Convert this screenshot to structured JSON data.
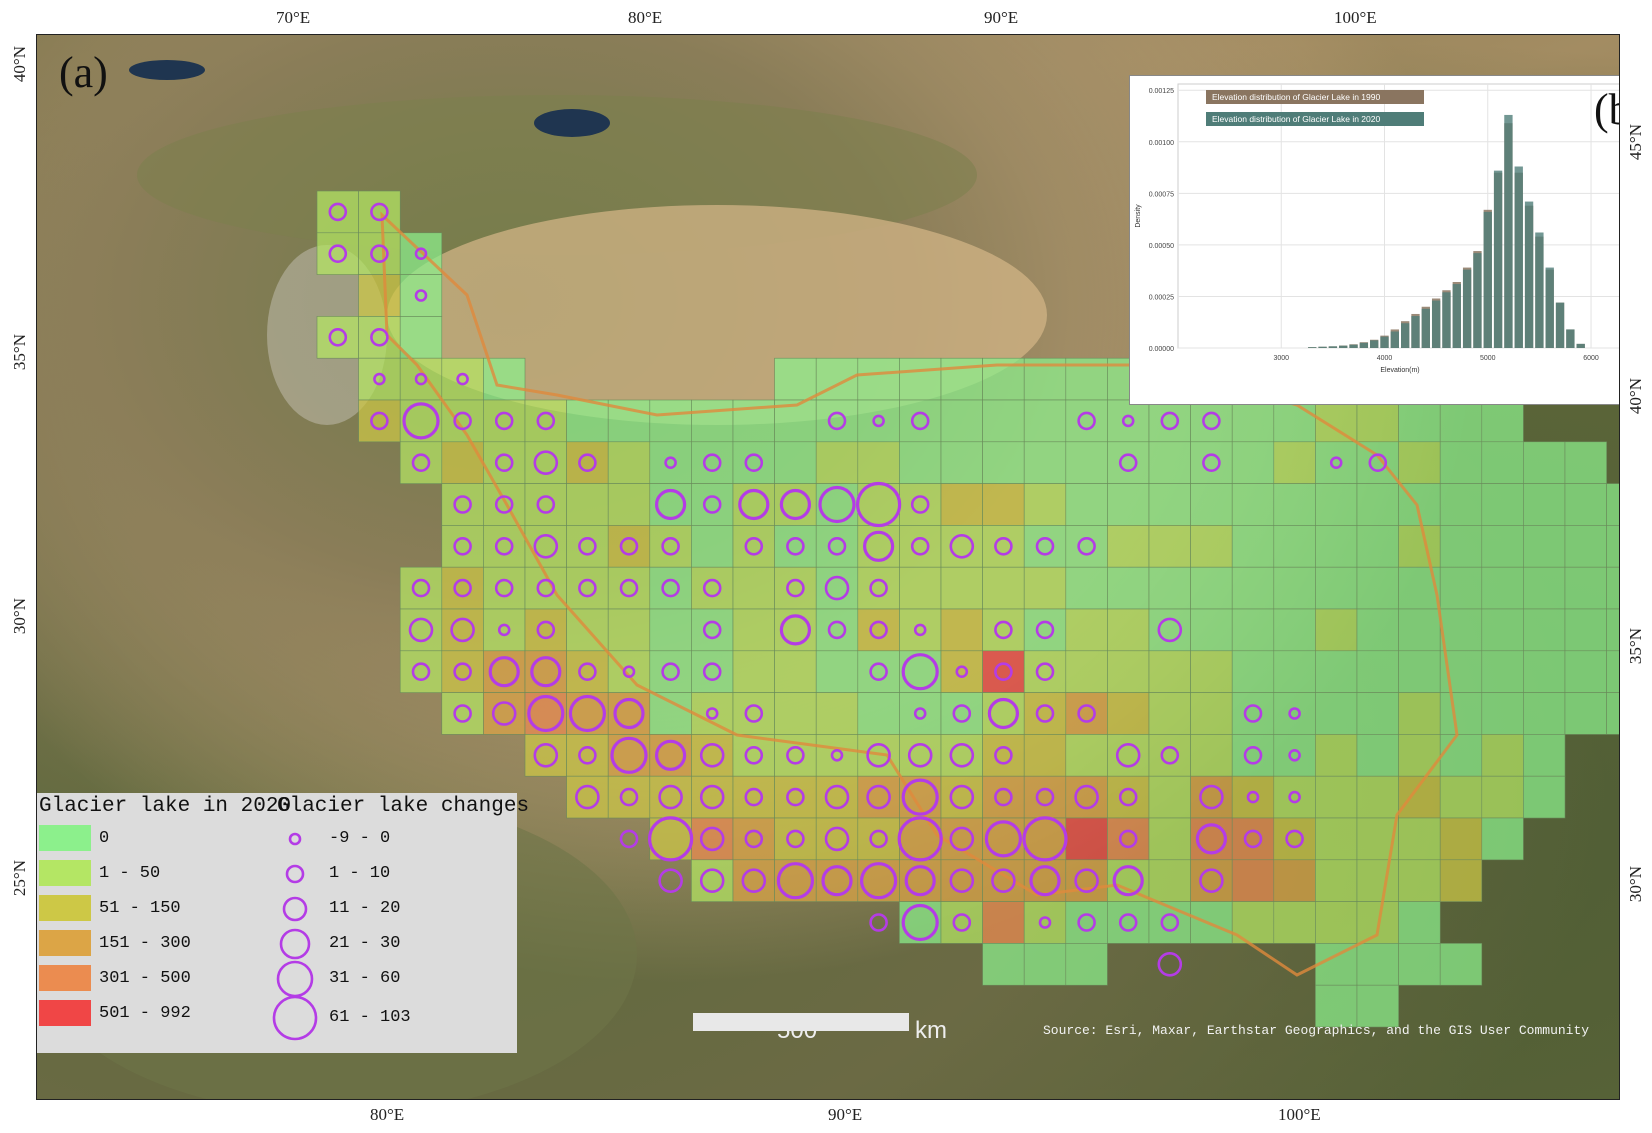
{
  "panel_a_label": "(a)",
  "panel_b_label": "(b)",
  "top_ticks": [
    "70°E",
    "80°E",
    "90°E",
    "100°E"
  ],
  "bottom_ticks": [
    "80°E",
    "90°E",
    "100°E"
  ],
  "left_ticks": [
    "40°N",
    "35°N",
    "30°N",
    "25°N"
  ],
  "right_ticks": [
    "45°N",
    "40°N",
    "35°N",
    "30°N"
  ],
  "legend": {
    "title_left": "Glacier lake in 2020",
    "title_right": "Glacier lake changes",
    "classes": [
      {
        "label": "0",
        "color": "#8cf08c"
      },
      {
        "label": "1 - 50",
        "color": "#b4e664"
      },
      {
        "label": "51 - 150",
        "color": "#cdc846"
      },
      {
        "label": "151 - 300",
        "color": "#dca546"
      },
      {
        "label": "301 - 500",
        "color": "#eb8c50"
      },
      {
        "label": "501 - 992",
        "color": "#f04646"
      }
    ],
    "changes": [
      {
        "label": "-9 - 0",
        "level": 1
      },
      {
        "label": "1 - 10",
        "level": 2
      },
      {
        "label": "11 - 20",
        "level": 3
      },
      {
        "label": "21 - 30",
        "level": 4
      },
      {
        "label": "31 - 60",
        "level": 5
      },
      {
        "label": "61 - 103",
        "level": 6
      }
    ]
  },
  "scale": {
    "value": "500",
    "unit": "km"
  },
  "source": "Source: Esri, Maxar, Earthstar Geographics, and the GIS User Community",
  "ring_color": "#b43ce6",
  "grid_cells": [
    "0,0,1",
    "1,0,1",
    "0,1,1",
    "1,1,1",
    "2,1,0",
    "1,2,2",
    "2,2,0",
    "0,3,1",
    "1,3,1",
    "2,3,0",
    "1,4,1",
    "2,4,1",
    "3,4,1",
    "4,4,0",
    "11,4,0",
    "12,4,0",
    "13,4,0",
    "14,4,0",
    "15,4,0",
    "16,4,0",
    "17,4,0",
    "18,4,0",
    "19,4,0",
    "20,4,0",
    "21,4,0",
    "22,4,0",
    "23,4,0",
    "24,4,1",
    "25,4,1",
    "26,4,0",
    "1,5,2",
    "2,5,1",
    "3,5,1",
    "4,5,1",
    "5,5,1",
    "6,5,0",
    "7,5,0",
    "8,5,0",
    "9,5,0",
    "10,5,0",
    "11,5,0",
    "12,5,0",
    "13,5,0",
    "14,5,0",
    "15,5,0",
    "16,5,0",
    "17,5,0",
    "18,5,0",
    "19,5,0",
    "20,5,0",
    "21,5,0",
    "22,5,0",
    "23,5,0",
    "24,5,1",
    "25,5,1",
    "26,5,0",
    "27,5,0",
    "28,5,0",
    "2,6,1",
    "3,6,2",
    "4,6,1",
    "5,6,1",
    "6,6,2",
    "7,6,1",
    "8,6,0",
    "9,6,0",
    "10,6,0",
    "11,6,0",
    "12,6,1",
    "13,6,1",
    "14,6,0",
    "15,6,0",
    "16,6,0",
    "17,6,0",
    "18,6,0",
    "19,6,0",
    "20,6,0",
    "21,6,0",
    "22,6,0",
    "23,6,1",
    "24,6,0",
    "25,6,0",
    "26,6,1",
    "27,6,0",
    "28,6,0",
    "29,6,0",
    "30,6,0",
    "3,7,1",
    "4,7,1",
    "5,7,1",
    "6,7,1",
    "7,7,1",
    "8,7,0",
    "9,7,0",
    "10,7,1",
    "11,7,1",
    "12,7,0",
    "13,7,1",
    "14,7,1",
    "15,7,2",
    "16,7,2",
    "17,7,1",
    "18,7,0",
    "19,7,0",
    "20,7,0",
    "21,7,0",
    "22,7,0",
    "23,7,0",
    "24,7,0",
    "25,7,0",
    "26,7,0",
    "27,7,0",
    "28,7,0",
    "29,7,0",
    "30,7,0",
    "31,7,0",
    "32,7,0",
    "3,8,1",
    "4,8,1",
    "5,8,1",
    "6,8,1",
    "7,8,2",
    "8,8,1",
    "9,8,0",
    "10,8,1",
    "11,8,0",
    "12,8,0",
    "13,8,1",
    "14,8,1",
    "15,8,1",
    "16,8,1",
    "17,8,0",
    "18,8,0",
    "19,8,1",
    "20,8,1",
    "21,8,1",
    "22,8,0",
    "23,8,0",
    "24,8,0",
    "25,8,0",
    "26,8,1",
    "27,8,0",
    "28,8,0",
    "29,8,0",
    "30,8,0",
    "31,8,0",
    "2,9,1",
    "3,9,2",
    "4,9,1",
    "5,9,1",
    "6,9,1",
    "7,9,1",
    "8,9,0",
    "9,9,1",
    "10,9,1",
    "11,9,1",
    "12,9,0",
    "13,9,1",
    "14,9,1",
    "15,9,1",
    "16,9,1",
    "17,9,1",
    "18,9,0",
    "19,9,0",
    "20,9,0",
    "21,9,0",
    "22,9,0",
    "23,9,0",
    "24,9,0",
    "25,9,0",
    "26,9,0",
    "27,9,0",
    "28,9,0",
    "29,9,0",
    "30,9,0",
    "31,9,0",
    "2,10,1",
    "3,10,2",
    "4,10,1",
    "5,10,2",
    "6,10,1",
    "7,10,1",
    "8,10,0",
    "9,10,0",
    "10,10,1",
    "11,10,1",
    "12,10,0",
    "13,10,2",
    "14,10,1",
    "15,10,2",
    "16,10,1",
    "17,10,0",
    "18,10,1",
    "19,10,1",
    "20,10,0",
    "21,10,0",
    "22,10,0",
    "23,10,0",
    "24,10,1",
    "25,10,0",
    "26,10,0",
    "27,10,0",
    "28,10,0",
    "29,10,0",
    "30,10,0",
    "31,10,0",
    "32,10,0",
    "2,11,1",
    "3,11,2",
    "4,11,3",
    "5,11,3",
    "6,11,2",
    "7,11,1",
    "8,11,0",
    "9,11,0",
    "10,11,1",
    "11,11,1",
    "12,11,0",
    "13,11,0",
    "14,11,0",
    "15,11,2",
    "16,11,5",
    "17,11,1",
    "18,11,1",
    "19,11,1",
    "20,11,1",
    "21,11,1",
    "22,11,0",
    "23,11,0",
    "24,11,0",
    "25,11,0",
    "26,11,0",
    "27,11,0",
    "28,11,0",
    "29,11,0",
    "30,11,0",
    "31,11,0",
    "32,11,0",
    "3,12,1",
    "4,12,3",
    "5,12,4",
    "6,12,3",
    "7,12,3",
    "8,12,0",
    "9,12,1",
    "10,12,1",
    "11,12,1",
    "12,12,1",
    "13,12,0",
    "14,12,0",
    "15,12,0",
    "16,12,1",
    "17,12,2",
    "18,12,3",
    "19,12,2",
    "20,12,1",
    "21,12,1",
    "22,12,0",
    "23,12,0",
    "24,12,0",
    "25,12,0",
    "26,12,1",
    "27,12,0",
    "28,12,0",
    "29,12,0",
    "30,12,0",
    "31,12,0",
    "5,13,2",
    "6,13,2",
    "7,13,3",
    "8,13,3",
    "9,13,2",
    "10,13,1",
    "11,13,1",
    "12,13,1",
    "13,13,1",
    "14,13,1",
    "15,13,1",
    "16,13,2",
    "17,13,2",
    "18,13,1",
    "19,13,1",
    "20,13,1",
    "21,13,1",
    "22,13,0",
    "23,13,0",
    "24,13,1",
    "25,13,0",
    "26,13,1",
    "27,13,0",
    "28,13,1",
    "29,13,0",
    "6,14,2",
    "7,14,2",
    "8,14,2",
    "9,14,2",
    "10,14,2",
    "11,14,2",
    "12,14,2",
    "13,14,3",
    "14,14,3",
    "15,14,2",
    "16,14,3",
    "17,14,3",
    "18,14,3",
    "19,14,2",
    "20,14,1",
    "21,14,3",
    "22,14,2",
    "23,14,1",
    "24,14,1",
    "25,14,1",
    "26,14,2",
    "27,14,1",
    "28,14,1",
    "29,14,0",
    "8,15,2",
    "9,15,4",
    "10,15,3",
    "11,15,2",
    "12,15,2",
    "13,15,2",
    "14,15,3",
    "15,15,3",
    "16,15,3",
    "17,15,3",
    "18,15,5",
    "19,15,4",
    "20,15,1",
    "21,15,4",
    "22,15,4",
    "23,15,2",
    "24,15,1",
    "25,15,1",
    "26,15,1",
    "27,15,2",
    "28,15,0",
    "9,16,1",
    "10,16,3",
    "11,16,3",
    "12,16,3",
    "13,16,3",
    "14,16,3",
    "15,16,3",
    "16,16,3",
    "17,16,3",
    "18,16,3",
    "19,16,1",
    "20,16,1",
    "21,16,3",
    "22,16,4",
    "23,16,3",
    "24,16,1",
    "25,16,1",
    "26,16,1",
    "27,16,2",
    "14,17,0",
    "15,17,1",
    "16,17,4",
    "17,17,1",
    "18,17,0",
    "19,17,0",
    "20,17,0",
    "21,17,0",
    "22,17,1",
    "23,17,1",
    "24,17,1",
    "25,17,1",
    "26,17,0",
    "16,18,0",
    "17,18,0",
    "18,18,0",
    "24,18,0",
    "25,18,0",
    "26,18,0",
    "27,18,0",
    "24,19,0",
    "25,19,0"
  ],
  "circles": [
    "0,0,2",
    "1,0,2",
    "0,1,2",
    "1,1,2",
    "2,1,1",
    "2,2,1",
    "0,3,2",
    "1,3,2",
    "1,4,1",
    "2,4,1",
    "3,4,1",
    "26,4,1",
    "27,4,2",
    "1,5,2",
    "2,5,5",
    "3,5,2",
    "4,5,2",
    "5,5,2",
    "12,5,2",
    "13,5,1",
    "14,5,2",
    "18,5,2",
    "19,5,1",
    "20,5,2",
    "21,5,2",
    "2,6,2",
    "4,6,2",
    "5,6,3",
    "6,6,2",
    "8,6,1",
    "9,6,2",
    "10,6,2",
    "19,6,2",
    "21,6,2",
    "24,6,1",
    "25,6,2",
    "3,7,2",
    "4,7,2",
    "5,7,2",
    "8,7,4",
    "9,7,2",
    "10,7,4",
    "11,7,4",
    "12,7,5",
    "13,7,6",
    "14,7,2",
    "3,8,2",
    "4,8,2",
    "5,8,3",
    "6,8,2",
    "7,8,2",
    "8,8,2",
    "10,8,2",
    "11,8,2",
    "12,8,2",
    "13,8,4",
    "14,8,2",
    "15,8,3",
    "16,8,2",
    "17,8,2",
    "18,8,2",
    "2,9,2",
    "3,9,2",
    "4,9,2",
    "5,9,2",
    "6,9,2",
    "7,9,2",
    "8,9,2",
    "9,9,2",
    "11,9,2",
    "12,9,3",
    "13,9,2",
    "2,10,3",
    "3,10,3",
    "4,10,1",
    "5,10,2",
    "9,10,2",
    "11,10,4",
    "12,10,2",
    "13,10,2",
    "14,10,1",
    "16,10,2",
    "17,10,2",
    "20,10,3",
    "2,11,2",
    "3,11,2",
    "4,11,4",
    "5,11,4",
    "6,11,2",
    "7,11,1",
    "8,11,2",
    "9,11,2",
    "13,11,2",
    "14,11,5",
    "15,11,1",
    "16,11,2",
    "17,11,2",
    "3,12,2",
    "4,12,3",
    "5,12,5",
    "6,12,5",
    "7,12,4",
    "9,12,1",
    "10,12,2",
    "14,12,1",
    "15,12,2",
    "16,12,4",
    "17,12,2",
    "18,12,2",
    "22,12,2",
    "23,12,1",
    "5,13,3",
    "6,13,2",
    "7,13,5",
    "8,13,4",
    "9,13,3",
    "10,13,2",
    "11,13,2",
    "12,13,1",
    "13,13,3",
    "14,13,3",
    "15,13,3",
    "16,13,2",
    "19,13,3",
    "20,13,2",
    "22,13,2",
    "23,13,1",
    "6,14,3",
    "7,14,2",
    "8,14,3",
    "9,14,3",
    "10,14,2",
    "11,14,2",
    "12,14,3",
    "13,14,3",
    "14,14,5",
    "15,14,3",
    "16,14,2",
    "17,14,2",
    "18,14,3",
    "19,14,2",
    "21,14,3",
    "22,14,1",
    "23,14,1",
    "7,15,2",
    "8,15,6",
    "9,15,3",
    "10,15,2",
    "11,15,2",
    "12,15,3",
    "13,15,2",
    "14,15,6",
    "15,15,3",
    "16,15,5",
    "17,15,6",
    "19,15,2",
    "21,15,4",
    "22,15,2",
    "23,15,2",
    "8,16,3",
    "9,16,3",
    "10,16,3",
    "11,16,5",
    "12,16,4",
    "13,16,5",
    "14,16,4",
    "15,16,3",
    "16,16,3",
    "17,16,4",
    "18,16,3",
    "19,16,4",
    "21,16,3",
    "13,17,2",
    "14,17,5",
    "15,17,2",
    "17,17,1",
    "18,17,2",
    "19,17,2",
    "20,17,2",
    "20,18,3"
  ],
  "chart_data": {
    "type": "bar",
    "xlabel": "Elevation(m)",
    "ylabel": "Density",
    "xlim": [
      2000,
      6300
    ],
    "ylim": [
      0,
      0.00128
    ],
    "x_ticks": [
      "3000",
      "4000",
      "5000",
      "6000"
    ],
    "y_ticks": [
      "0.00000",
      "0.00025",
      "0.00050",
      "0.00075",
      "0.00100",
      "0.00125"
    ],
    "legend_position": "top-left",
    "grid": true,
    "series": [
      {
        "name": "Elevation distribution of Glacier Lake in 1990",
        "color": "#8a7560",
        "x": [
          3300,
          3400,
          3500,
          3600,
          3700,
          3800,
          3900,
          4000,
          4100,
          4200,
          4300,
          4400,
          4500,
          4600,
          4700,
          4800,
          4900,
          5000,
          5100,
          5200,
          5300,
          5400,
          5500,
          5600,
          5700,
          5800,
          5900
        ],
        "values": [
          4e-06,
          6e-06,
          8e-06,
          1.2e-05,
          1.8e-05,
          2.8e-05,
          4e-05,
          6e-05,
          9e-05,
          0.00013,
          0.000165,
          0.0002,
          0.00024,
          0.00028,
          0.00032,
          0.00039,
          0.00047,
          0.00067,
          0.00085,
          0.00109,
          0.00085,
          0.00069,
          0.00054,
          0.00038,
          0.00022,
          9e-05,
          2e-05
        ]
      },
      {
        "name": "Elevation distribution of Glacier Lake in 2020",
        "color": "#4f7d78",
        "x": [
          3300,
          3400,
          3500,
          3600,
          3700,
          3800,
          3900,
          4000,
          4100,
          4200,
          4300,
          4400,
          4500,
          4600,
          4700,
          4800,
          4900,
          5000,
          5100,
          5200,
          5300,
          5400,
          5500,
          5600,
          5700,
          5800,
          5900
        ],
        "values": [
          4e-06,
          6e-06,
          8e-06,
          1.1e-05,
          1.6e-05,
          2.5e-05,
          3.7e-05,
          5.5e-05,
          8e-05,
          0.00012,
          0.000155,
          0.00019,
          0.00023,
          0.00027,
          0.00031,
          0.00038,
          0.00046,
          0.00066,
          0.00086,
          0.00113,
          0.00088,
          0.00071,
          0.00056,
          0.00039,
          0.00022,
          9e-05,
          2e-05
        ]
      }
    ]
  }
}
